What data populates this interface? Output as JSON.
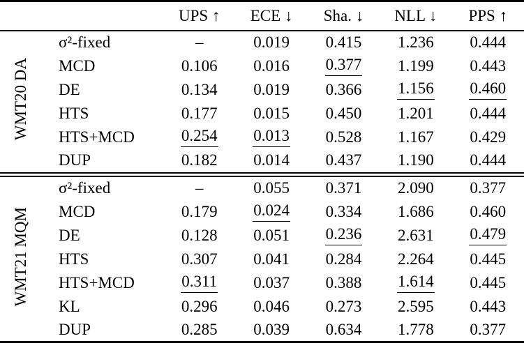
{
  "meta": {
    "background_color": "#ffffff",
    "text_color": "#000000",
    "rule_color": "#000000",
    "description": "Paper results table of uncertainty estimation metrics"
  },
  "chart_data": {
    "type": "table",
    "title": "",
    "columns": [
      "",
      "",
      "UPS ↑",
      "ECE ↓",
      "Sha. ↓",
      "NLL ↓",
      "PPS ↑"
    ],
    "groups": [
      {
        "label": "WMT20 DA",
        "rows": [
          {
            "method": "σ²-fixed",
            "values": [
              "–",
              "0.019",
              "0.415",
              "1.236",
              "0.444"
            ],
            "underlined": []
          },
          {
            "method": "MCD",
            "values": [
              "0.106",
              "0.016",
              "0.377",
              "1.199",
              "0.443"
            ],
            "underlined": [
              2
            ]
          },
          {
            "method": "DE",
            "values": [
              "0.134",
              "0.019",
              "0.366",
              "1.156",
              "0.460"
            ],
            "underlined": [
              3,
              4
            ]
          },
          {
            "method": "HTS",
            "values": [
              "0.177",
              "0.015",
              "0.450",
              "1.201",
              "0.444"
            ],
            "underlined": []
          },
          {
            "method": "HTS+MCD",
            "values": [
              "0.254",
              "0.013",
              "0.528",
              "1.167",
              "0.429"
            ],
            "underlined": [
              0,
              1
            ]
          },
          {
            "method": "DUP",
            "values": [
              "0.182",
              "0.014",
              "0.437",
              "1.190",
              "0.444"
            ],
            "underlined": []
          }
        ]
      },
      {
        "label": "WMT21 MQM",
        "rows": [
          {
            "method": "σ²-fixed",
            "values": [
              "–",
              "0.055",
              "0.371",
              "2.090",
              "0.377"
            ],
            "underlined": []
          },
          {
            "method": "MCD",
            "values": [
              "0.179",
              "0.024",
              "0.334",
              "1.686",
              "0.460"
            ],
            "underlined": [
              1
            ]
          },
          {
            "method": "DE",
            "values": [
              "0.128",
              "0.051",
              "0.236",
              "2.631",
              "0.479"
            ],
            "underlined": [
              2,
              4
            ]
          },
          {
            "method": "HTS",
            "values": [
              "0.307",
              "0.041",
              "0.284",
              "2.264",
              "0.445"
            ],
            "underlined": []
          },
          {
            "method": "HTS+MCD",
            "values": [
              "0.311",
              "0.037",
              "0.388",
              "1.614",
              "0.445"
            ],
            "underlined": [
              0,
              3
            ]
          },
          {
            "method": "KL",
            "values": [
              "0.296",
              "0.046",
              "0.273",
              "2.595",
              "0.443"
            ],
            "underlined": []
          },
          {
            "method": "DUP",
            "values": [
              "0.285",
              "0.039",
              "0.634",
              "1.778",
              "0.377"
            ],
            "underlined": []
          }
        ]
      }
    ],
    "header": {
      "col_ups": "UPS ↑",
      "col_ece": "ECE ↓",
      "col_sha": "Sha. ↓",
      "col_nll": "NLL ↓",
      "col_pps": "PPS ↑"
    }
  }
}
